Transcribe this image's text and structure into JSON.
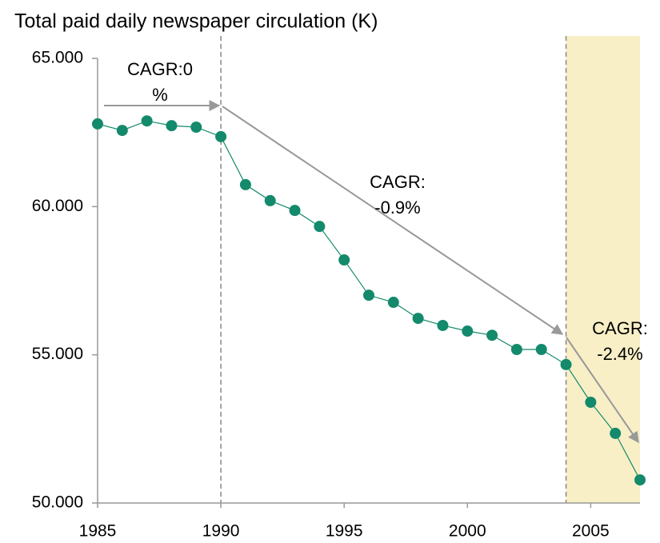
{
  "chart_data": {
    "type": "line",
    "title": "Total paid daily newspaper circulation (K)",
    "x": [
      1985,
      1986,
      1987,
      1988,
      1989,
      1990,
      1991,
      1992,
      1993,
      1994,
      1995,
      1996,
      1997,
      1998,
      1999,
      2000,
      2001,
      2002,
      2003,
      2004,
      2005,
      2006,
      2007
    ],
    "series": [
      {
        "name": "Circulation",
        "color": "#138a6b",
        "values": [
          62790,
          62570,
          62890,
          62730,
          62680,
          62360,
          60740,
          60200,
          59870,
          59330,
          58200,
          57010,
          56770,
          56230,
          55990,
          55800,
          55660,
          55180,
          55180,
          54670,
          53400,
          52350,
          50780
        ]
      }
    ],
    "xlim": [
      1985,
      2007
    ],
    "xticks": [
      1985,
      1990,
      1995,
      2000,
      2005
    ],
    "ylim": [
      50000,
      65000
    ],
    "yticks": [
      {
        "value": 50000,
        "label": "50.000"
      },
      {
        "value": 55000,
        "label": "55.000"
      },
      {
        "value": 60000,
        "label": "60.000"
      },
      {
        "value": 65000,
        "label": "65.000"
      }
    ],
    "reference_lines": [
      1990,
      2004
    ],
    "shaded_range": {
      "x": [
        2004,
        2007
      ],
      "color": "#f8efc6"
    },
    "annotations": [
      {
        "lines": [
          "CAGR:0",
          "%"
        ]
      },
      {
        "lines": [
          "CAGR:",
          "-0.9%"
        ]
      },
      {
        "lines": [
          "CAGR:",
          "-2.4%"
        ]
      }
    ]
  }
}
